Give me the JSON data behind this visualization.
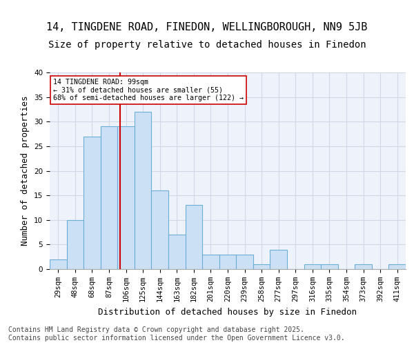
{
  "title1": "14, TINGDENE ROAD, FINEDON, WELLINGBOROUGH, NN9 5JB",
  "title2": "Size of property relative to detached houses in Finedon",
  "xlabel": "Distribution of detached houses by size in Finedon",
  "ylabel": "Number of detached properties",
  "bins": [
    "29sqm",
    "48sqm",
    "68sqm",
    "87sqm",
    "106sqm",
    "125sqm",
    "144sqm",
    "163sqm",
    "182sqm",
    "201sqm",
    "220sqm",
    "239sqm",
    "258sqm",
    "277sqm",
    "297sqm",
    "316sqm",
    "335sqm",
    "354sqm",
    "373sqm",
    "392sqm",
    "411sqm"
  ],
  "values": [
    2,
    10,
    27,
    29,
    29,
    32,
    16,
    7,
    13,
    3,
    3,
    3,
    1,
    4,
    0,
    1,
    1,
    0,
    1,
    0,
    1
  ],
  "bar_color": "#cce0f5",
  "bar_edge_color": "#6aaed6",
  "bar_linewidth": 0.8,
  "grid_color": "#d0d8e8",
  "bg_color": "#eef2fa",
  "red_line_color": "#cc0000",
  "annotation_text": "14 TINGDENE ROAD: 99sqm\n← 31% of detached houses are smaller (55)\n68% of semi-detached houses are larger (122) →",
  "annotation_box_color": "#ffffff",
  "annotation_border_color": "#cc0000",
  "ylim": [
    0,
    40
  ],
  "yticks": [
    0,
    5,
    10,
    15,
    20,
    25,
    30,
    35,
    40
  ],
  "footer": "Contains HM Land Registry data © Crown copyright and database right 2025.\nContains public sector information licensed under the Open Government Licence v3.0.",
  "title_fontsize": 11,
  "subtitle_fontsize": 10,
  "axis_label_fontsize": 9,
  "tick_fontsize": 7.5,
  "footer_fontsize": 7
}
